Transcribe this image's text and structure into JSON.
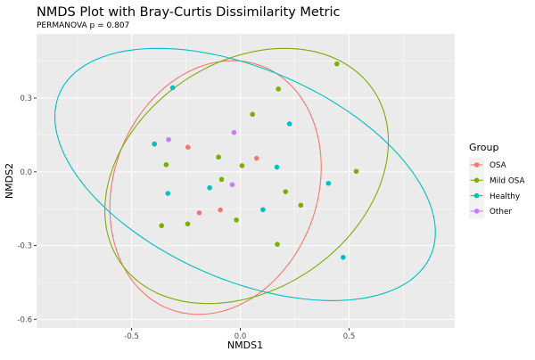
{
  "chart_data": {
    "type": "scatter",
    "title": "NMDS Plot with Bray-Curtis Dissimilarity Metric",
    "subtitle": "PERMANOVA p = 0.807",
    "xlabel": "NMDS1",
    "ylabel": "NMDS2",
    "xlim": [
      -0.937,
      0.986
    ],
    "ylim": [
      -0.635,
      0.561
    ],
    "xticks": [
      -0.5,
      0.0,
      0.5
    ],
    "xtick_labels": [
      "-0.5",
      "0.0",
      "0.5"
    ],
    "yticks": [
      -0.6,
      -0.3,
      0.0,
      0.3
    ],
    "ytick_labels": [
      "-0.6",
      "-0.3",
      "0.0",
      "0.3"
    ],
    "grid": true,
    "legend": {
      "title": "Group",
      "placement": "right"
    },
    "series": [
      {
        "name": "OSA",
        "color": "#F8766D",
        "points": [
          [
            -0.241,
            0.1
          ],
          [
            0.075,
            0.055
          ],
          [
            -0.189,
            -0.167
          ],
          [
            -0.092,
            -0.155
          ]
        ],
        "ellipse": {
          "center": [
            -0.114,
            -0.064
          ],
          "sx": 0.486,
          "sy": 0.516,
          "rho": 0.16
        }
      },
      {
        "name": "Mild OSA",
        "color": "#7CAE00",
        "points": [
          [
            0.444,
            0.439
          ],
          [
            0.175,
            0.337
          ],
          [
            0.056,
            0.234
          ],
          [
            -0.1,
            0.06
          ],
          [
            -0.341,
            0.029
          ],
          [
            0.008,
            0.025
          ],
          [
            0.533,
            0.002
          ],
          [
            -0.086,
            -0.031
          ],
          [
            0.208,
            -0.081
          ],
          [
            0.278,
            -0.136
          ],
          [
            -0.018,
            -0.196
          ],
          [
            -0.242,
            -0.212
          ],
          [
            -0.362,
            -0.219
          ],
          [
            0.17,
            -0.295
          ]
        ],
        "ellipse": {
          "center": [
            0.029,
            -0.017
          ],
          "sx": 0.652,
          "sy": 0.519,
          "rho": 0.27
        }
      },
      {
        "name": "Healthy",
        "color": "#00BFC4",
        "points": [
          [
            -0.311,
            0.342
          ],
          [
            0.226,
            0.195
          ],
          [
            -0.395,
            0.113
          ],
          [
            0.168,
            0.019
          ],
          [
            0.405,
            -0.047
          ],
          [
            -0.333,
            -0.088
          ],
          [
            -0.141,
            -0.065
          ],
          [
            0.104,
            -0.154
          ],
          [
            0.473,
            -0.348
          ]
        ],
        "ellipse": {
          "center": [
            0.022,
            -0.011
          ],
          "sx": 0.875,
          "sy": 0.513,
          "rho": -0.458
        }
      },
      {
        "name": "Other",
        "color": "#C77CFF",
        "points": [
          [
            -0.029,
            0.16
          ],
          [
            -0.33,
            0.131
          ],
          [
            -0.037,
            -0.052
          ]
        ]
      }
    ]
  }
}
